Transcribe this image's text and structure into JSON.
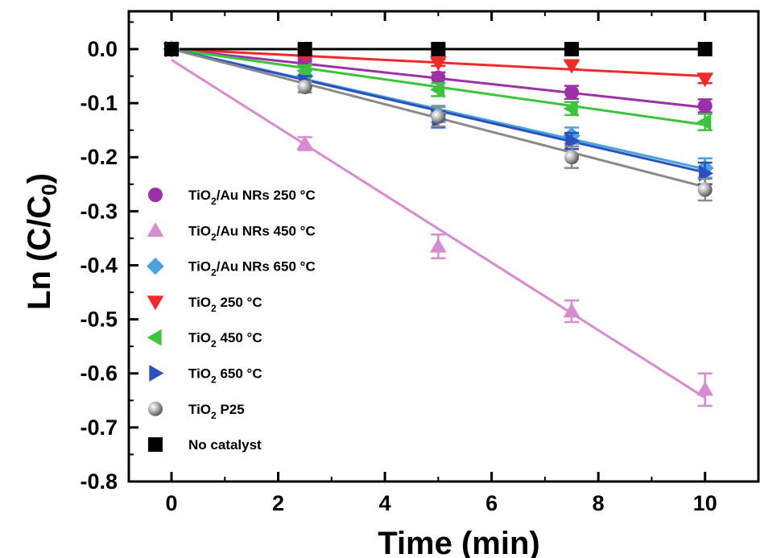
{
  "chart_data": {
    "type": "scatter",
    "xlabel": "Time (min)",
    "ylabel": "Ln (C/C0)",
    "ylabel_parts": {
      "prefix": "Ln (C/C",
      "sub": "0",
      "suffix": ")"
    },
    "xlim": [
      -0.8,
      11
    ],
    "ylim": [
      -0.8,
      0.07
    ],
    "xticks": [
      0,
      2,
      4,
      6,
      8,
      10
    ],
    "yticks": [
      0.0,
      -0.1,
      -0.2,
      -0.3,
      -0.4,
      -0.5,
      -0.6,
      -0.7,
      -0.8
    ],
    "xtick_labels": [
      "0",
      "2",
      "4",
      "6",
      "8",
      "10"
    ],
    "ytick_labels": [
      "0.0",
      "-0.1",
      "-0.2",
      "-0.3",
      "-0.4",
      "-0.5",
      "-0.6",
      "-0.7",
      "-0.8"
    ],
    "grid": false,
    "legend_position": "left",
    "x": [
      0,
      2.5,
      5,
      7.5,
      10
    ],
    "series": [
      {
        "name": "TiO2/Au NRs 250 °C",
        "legend": {
          "prefix": "TiO",
          "sub": "2",
          "suffix": "/Au NRs 250 °C"
        },
        "marker": "circle",
        "color": "#9b30a8",
        "values": [
          0,
          -0.02,
          -0.053,
          -0.08,
          -0.105
        ],
        "errors": [
          0,
          0.01,
          0.01,
          0.012,
          0.012
        ],
        "fit": [
          0,
          -0.108
        ]
      },
      {
        "name": "TiO2/Au NRs 450 °C",
        "legend": {
          "prefix": "TiO",
          "sub": "2",
          "suffix": "/Au NRs 450 °C"
        },
        "marker": "triangle-up",
        "color": "#d98ad0",
        "values": [
          0,
          -0.175,
          -0.365,
          -0.485,
          -0.63
        ],
        "errors": [
          0,
          0.012,
          0.022,
          0.02,
          0.03
        ],
        "fit": [
          -0.02,
          -0.645
        ]
      },
      {
        "name": "TiO2/Au NRs 650 °C",
        "legend": {
          "prefix": "TiO",
          "sub": "2",
          "suffix": "/Au NRs 650 °C"
        },
        "marker": "diamond",
        "color": "#4aa3df",
        "values": [
          0,
          -0.05,
          -0.12,
          -0.16,
          -0.22
        ],
        "errors": [
          0,
          0.01,
          0.015,
          0.015,
          0.018
        ],
        "fit": [
          0,
          -0.222
        ]
      },
      {
        "name": "TiO2 250 °C",
        "legend": {
          "prefix": "TiO",
          "sub": "2",
          "suffix": " 250 °C"
        },
        "marker": "triangle-down",
        "color": "#f02a2a",
        "values": [
          0,
          -0.01,
          -0.025,
          -0.03,
          -0.055
        ],
        "errors": [
          0,
          0.005,
          0.006,
          0.007,
          0.008
        ],
        "fit": [
          0,
          -0.05
        ]
      },
      {
        "name": "TiO2 450 °C",
        "legend": {
          "prefix": "TiO",
          "sub": "2",
          "suffix": " 450 °C"
        },
        "marker": "triangle-left",
        "color": "#3cc43c",
        "values": [
          0,
          -0.04,
          -0.075,
          -0.11,
          -0.135
        ],
        "errors": [
          0,
          0.01,
          0.012,
          0.012,
          0.015
        ],
        "fit": [
          0,
          -0.14
        ]
      },
      {
        "name": "TiO2 650 °C",
        "legend": {
          "prefix": "TiO",
          "sub": "2",
          "suffix": " 650 °C"
        },
        "marker": "triangle-right",
        "color": "#2a50c0",
        "values": [
          0,
          -0.06,
          -0.13,
          -0.17,
          -0.23
        ],
        "errors": [
          0,
          0.01,
          0.015,
          0.015,
          0.02
        ],
        "fit": [
          0,
          -0.228
        ]
      },
      {
        "name": "TiO2 P25",
        "legend": {
          "prefix": "TiO",
          "sub": "2",
          "suffix": " P25"
        },
        "marker": "sphere",
        "color": "#8a8a8a",
        "values": [
          0,
          -0.07,
          -0.125,
          -0.2,
          -0.26
        ],
        "errors": [
          0,
          0.01,
          0.018,
          0.02,
          0.02
        ],
        "fit": [
          0,
          -0.255
        ]
      },
      {
        "name": "No catalyst",
        "legend": {
          "prefix": "No catalyst",
          "sub": "",
          "suffix": ""
        },
        "marker": "square",
        "color": "#000000",
        "values": [
          0,
          0,
          0,
          0,
          0
        ],
        "errors": [
          0,
          0,
          0,
          0,
          0
        ],
        "fit": [
          0,
          0
        ]
      }
    ]
  }
}
